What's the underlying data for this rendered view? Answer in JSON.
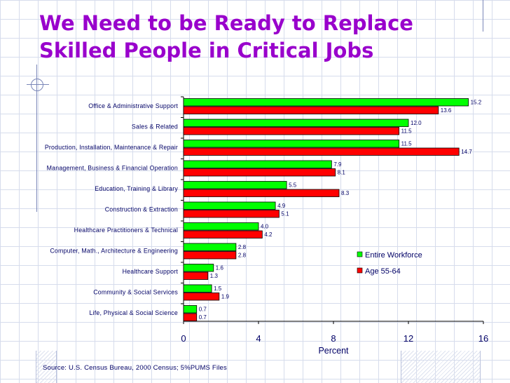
{
  "title_lines": [
    "We Need to be Ready to Replace",
    "Skilled People in Critical Jobs"
  ],
  "source": "Source:  U.S. Census Bureau, 2000 Census; 5%PUMS Files",
  "chart_data": {
    "type": "bar",
    "orientation": "horizontal",
    "categories": [
      "Office & Administrative Support",
      "Sales & Related",
      "Production, Installation, Maintenance & Repair",
      "Management, Business & Financial Operation",
      "Education, Training & Library",
      "Construction & Extraction",
      "Healthcare Practitioners & Technical",
      "Computer, Math., Architecture & Engineering",
      "Healthcare Support",
      "Community & Social Services",
      "Life, Physical & Social Science"
    ],
    "series": [
      {
        "name": "Entire Workforce",
        "color": "#00ff00",
        "values": [
          15.2,
          12.0,
          11.5,
          7.9,
          5.5,
          4.9,
          4.0,
          2.8,
          1.6,
          1.5,
          0.7
        ]
      },
      {
        "name": "Age 55-64",
        "color": "#ff0000",
        "values": [
          13.6,
          11.5,
          14.7,
          8.1,
          8.3,
          5.1,
          4.2,
          2.8,
          1.3,
          1.9,
          0.7
        ]
      }
    ],
    "value_labels": [
      [
        "15.2",
        "12.0",
        "11.5",
        "7.9",
        "5.5",
        "4.9",
        "4.0",
        "2.8",
        "1.6",
        "1.5",
        "0.7"
      ],
      [
        "13.6",
        "11.5",
        "14.7",
        "8.1",
        "8.3",
        "5.1",
        "4.2",
        "2.8",
        "1.3",
        "1.9",
        "0.7"
      ]
    ],
    "xlabel": "Percent",
    "xlim": [
      0,
      16
    ],
    "xticks": [
      0,
      4,
      8,
      12,
      16
    ],
    "legend_position": "right, lower-middle",
    "grid": false
  }
}
